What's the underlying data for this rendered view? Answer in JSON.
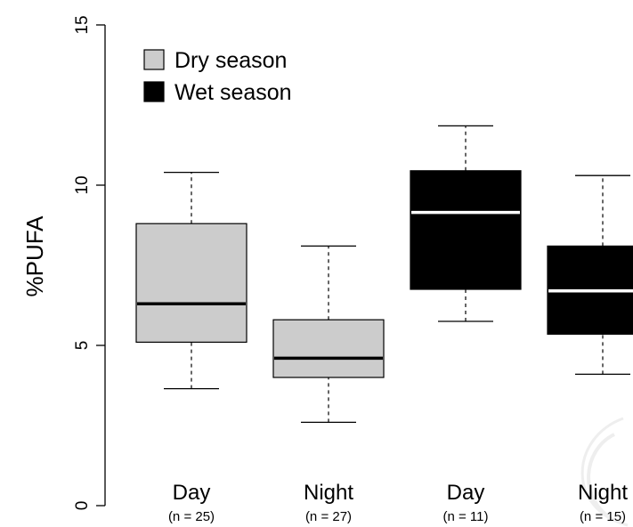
{
  "chart_data": {
    "type": "boxplot",
    "title": "",
    "xlabel": "",
    "ylabel": "%PUFA",
    "ylim": [
      0,
      15
    ],
    "yticks": [
      "0",
      "5",
      "10",
      "15"
    ],
    "legend": {
      "placement": "top-left",
      "entries": [
        {
          "label": "Dry season",
          "color": "#cccccc"
        },
        {
          "label": "Wet season",
          "color": "#000000"
        }
      ]
    },
    "groups": [
      {
        "label": "Day",
        "sublabel": "(n = 25)",
        "season": "Dry season",
        "color": "#cccccc",
        "median_color": "#000000",
        "min": 3.65,
        "q1": 5.1,
        "median": 6.3,
        "q3": 8.8,
        "max": 10.4
      },
      {
        "label": "Night",
        "sublabel": "(n = 27)",
        "season": "Dry season",
        "color": "#cccccc",
        "median_color": "#000000",
        "min": 2.6,
        "q1": 4.0,
        "median": 4.6,
        "q3": 5.8,
        "max": 8.1
      },
      {
        "label": "Day",
        "sublabel": "(n = 11)",
        "season": "Wet season",
        "color": "#000000",
        "median_color": "#ffffff",
        "min": 5.75,
        "q1": 6.75,
        "median": 9.15,
        "q3": 10.45,
        "max": 11.85
      },
      {
        "label": "Night",
        "sublabel": "(n = 15)",
        "season": "Wet season",
        "color": "#000000",
        "median_color": "#ffffff",
        "min": 4.1,
        "q1": 5.35,
        "median": 6.7,
        "q3": 8.1,
        "max": 10.3
      }
    ]
  }
}
